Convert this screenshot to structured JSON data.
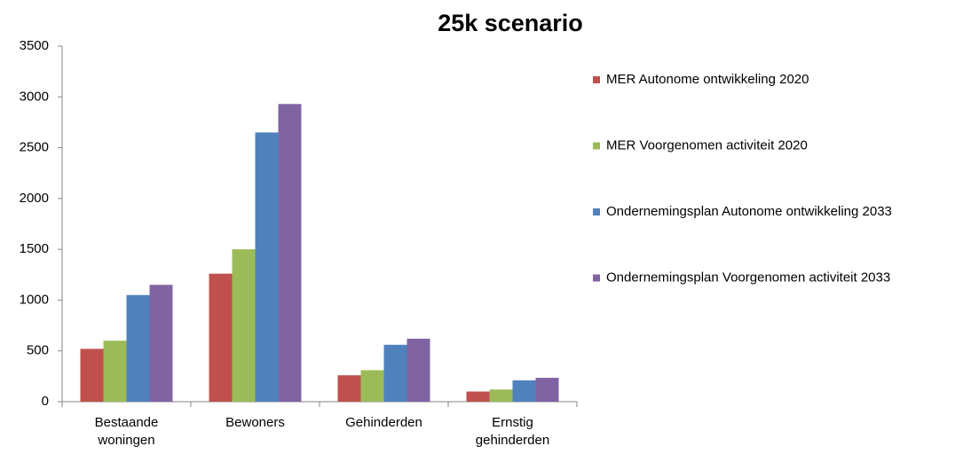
{
  "chart_data": {
    "type": "bar",
    "title": "25k scenario",
    "categories": [
      "Bestaande woningen",
      "Bewoners",
      "Gehinderden",
      "Ernstig gehinderden"
    ],
    "series": [
      {
        "name": "MER Autonome ontwikkeling 2020",
        "color": "#c0504d",
        "values": [
          520,
          1260,
          260,
          100
        ]
      },
      {
        "name": "MER Voorgenomen activiteit 2020",
        "color": "#9bbb59",
        "values": [
          600,
          1500,
          310,
          120
        ]
      },
      {
        "name": "Ondernemingsplan Autonome ontwikkeling 2033",
        "color": "#4f81bd",
        "values": [
          1050,
          2650,
          560,
          210
        ]
      },
      {
        "name": "Ondernemingsplan Voorgenomen activiteit 2033",
        "color": "#8064a2",
        "values": [
          1150,
          2930,
          620,
          235
        ]
      }
    ],
    "ylim": [
      0,
      3500
    ],
    "yticks": [
      0,
      500,
      1000,
      1500,
      2000,
      2500,
      3000,
      3500
    ],
    "grid": false,
    "legend": "right"
  }
}
